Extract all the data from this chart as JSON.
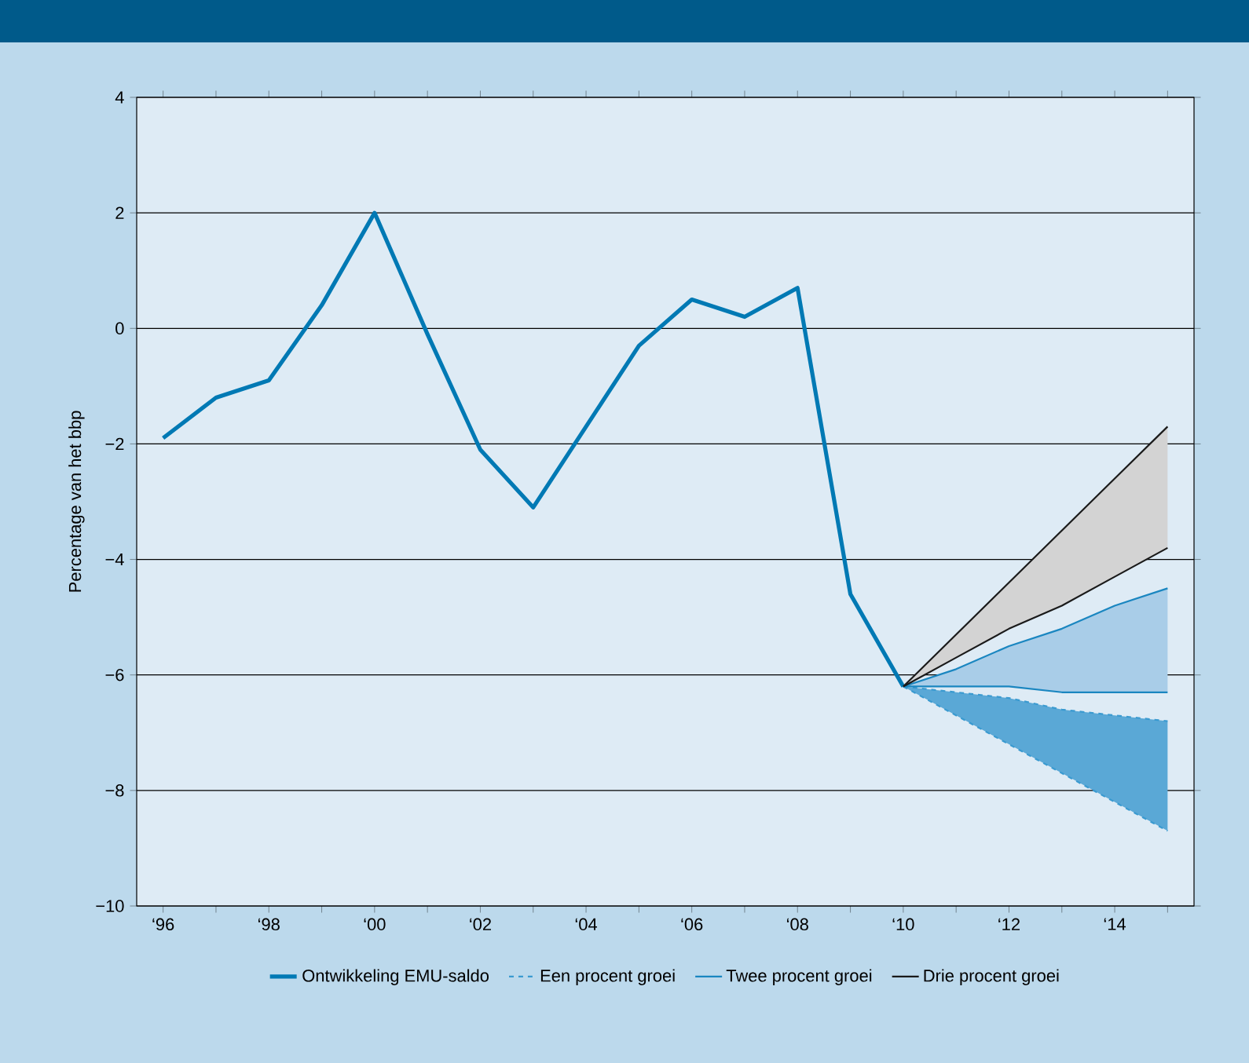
{
  "chart_data": {
    "type": "line",
    "ylabel": "Percentage van het bbp",
    "categories": [
      "‘96",
      null,
      "‘98",
      null,
      "‘00",
      null,
      "‘02",
      null,
      "‘04",
      null,
      "‘06",
      null,
      "‘08",
      null,
      "‘10",
      null,
      "‘12",
      null,
      "‘14",
      null
    ],
    "ylim": [
      -10,
      4
    ],
    "yticks": [
      {
        "value": -10,
        "label": "−10"
      },
      {
        "value": -8,
        "label": "−8"
      },
      {
        "value": -6,
        "label": "−6"
      },
      {
        "value": -4,
        "label": "−4"
      },
      {
        "value": -2,
        "label": "−2"
      },
      0,
      2,
      4
    ],
    "grid": "y",
    "legend": "bottom",
    "series": [
      {
        "name": "Ontwikkeling EMU-saldo",
        "color": "#0079b4",
        "values": [
          -1.9,
          -1.2,
          -0.9,
          0.4,
          2.0,
          -0.1,
          -2.1,
          -3.1,
          -1.7,
          -0.3,
          0.5,
          0.2,
          0.7,
          -4.6,
          -6.2,
          null,
          null,
          null,
          null,
          null
        ]
      },
      {
        "name": "Een procent groei",
        "color": "#3a9ad0",
        "line_style": "dashed",
        "values": [
          null,
          null,
          null,
          null,
          null,
          null,
          null,
          null,
          null,
          null,
          null,
          null,
          null,
          null,
          -6.2,
          -6.3,
          -6.4,
          -6.6,
          -6.7,
          -6.8
        ],
        "lower": [
          null,
          null,
          null,
          null,
          null,
          null,
          null,
          null,
          null,
          null,
          null,
          null,
          null,
          null,
          -6.2,
          -6.7,
          -7.2,
          -7.7,
          -8.2,
          -8.7
        ],
        "upper": [
          null,
          null,
          null,
          null,
          null,
          null,
          null,
          null,
          null,
          null,
          null,
          null,
          null,
          null,
          -6.2,
          -6.3,
          -6.4,
          -6.6,
          -6.7,
          -6.8
        ]
      },
      {
        "name": "Twee procent groei",
        "color": "#1a86c0",
        "values": [
          null,
          null,
          null,
          null,
          null,
          null,
          null,
          null,
          null,
          null,
          null,
          null,
          null,
          null,
          -6.2,
          -5.9,
          -5.5,
          -5.2,
          -4.8,
          -4.5
        ],
        "lower": [
          null,
          null,
          null,
          null,
          null,
          null,
          null,
          null,
          null,
          null,
          null,
          null,
          null,
          null,
          -6.2,
          -6.2,
          -6.2,
          -6.3,
          -6.3,
          -6.3
        ],
        "upper": [
          null,
          null,
          null,
          null,
          null,
          null,
          null,
          null,
          null,
          null,
          null,
          null,
          null,
          null,
          -6.2,
          -5.9,
          -5.5,
          -5.2,
          -4.8,
          -4.5
        ]
      },
      {
        "name": "Drie procent groei",
        "color": "#1a1a1a",
        "values": [
          null,
          null,
          null,
          null,
          null,
          null,
          null,
          null,
          null,
          null,
          null,
          null,
          null,
          null,
          -6.2,
          -5.3,
          -4.4,
          -3.5,
          -2.6,
          -1.7
        ],
        "lower": [
          null,
          null,
          null,
          null,
          null,
          null,
          null,
          null,
          null,
          null,
          null,
          null,
          null,
          null,
          -6.2,
          -5.7,
          -5.2,
          -4.8,
          -4.3,
          -3.8
        ],
        "upper": [
          null,
          null,
          null,
          null,
          null,
          null,
          null,
          null,
          null,
          null,
          null,
          null,
          null,
          null,
          -6.2,
          -5.3,
          -4.4,
          -3.5,
          -2.6,
          -1.7
        ]
      },
      {
        "color": "#3a9ad0",
        "line_style": "dashed",
        "values": [
          null,
          null,
          null,
          null,
          null,
          null,
          null,
          null,
          null,
          null,
          null,
          null,
          null,
          null,
          -6.2,
          -6.7,
          -7.2,
          -7.7,
          -8.2,
          -8.7
        ]
      },
      {
        "color": "#1a86c0",
        "values": [
          null,
          null,
          null,
          null,
          null,
          null,
          null,
          null,
          null,
          null,
          null,
          null,
          null,
          null,
          -6.2,
          -6.2,
          -6.2,
          -6.3,
          -6.3,
          -6.3
        ]
      },
      {
        "color": "#1a1a1a",
        "values": [
          null,
          null,
          null,
          null,
          null,
          null,
          null,
          null,
          null,
          null,
          null,
          null,
          null,
          null,
          -6.2,
          -5.7,
          -5.2,
          -4.8,
          -4.3,
          -3.8
        ]
      }
    ]
  }
}
